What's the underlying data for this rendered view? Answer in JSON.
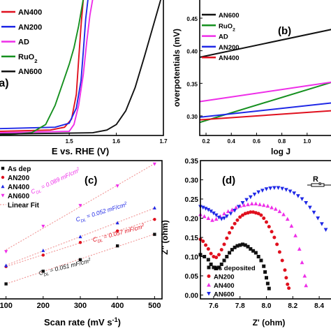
{
  "figure": {
    "panels": [
      "(a)",
      "(b)",
      "(c)",
      "(d)"
    ]
  },
  "chart_data": [
    {
      "id": "a",
      "type": "line",
      "panel_label": "(a)",
      "xlabel": "E vs. RHE (V)",
      "ylabel": "",
      "xlim": [
        1.35,
        1.7
      ],
      "ylim": [
        0,
        100
      ],
      "x_ticks": [
        "1.5",
        "1.6",
        "1.7"
      ],
      "x_tick_values": [
        1.5,
        1.6,
        1.7
      ],
      "grid": false,
      "legend_position": "top-left",
      "series": [
        {
          "name": "AN400",
          "color": "#e0101e",
          "x": [
            1.35,
            1.46,
            1.49,
            1.505,
            1.515,
            1.52,
            1.525,
            1.53
          ],
          "y": [
            3,
            4,
            6,
            12,
            30,
            55,
            80,
            100
          ]
        },
        {
          "name": "AN200",
          "color": "#1f28e6",
          "x": [
            1.35,
            1.47,
            1.5,
            1.515,
            1.525,
            1.53,
            1.535,
            1.54
          ],
          "y": [
            5,
            6,
            9,
            20,
            40,
            62,
            85,
            100
          ]
        },
        {
          "name": "AD",
          "color": "#ee2ee8",
          "x": [
            1.35,
            1.5,
            1.51,
            1.52,
            1.53,
            1.537,
            1.544,
            1.55
          ],
          "y": [
            2,
            3,
            8,
            22,
            45,
            68,
            88,
            100
          ]
        },
        {
          "name": "RuO2",
          "color": "#15901f",
          "x": [
            1.35,
            1.42,
            1.45,
            1.47,
            1.49,
            1.5,
            1.51,
            1.52,
            1.53
          ],
          "y": [
            0,
            2,
            8,
            22,
            42,
            52,
            64,
            80,
            100
          ]
        },
        {
          "name": "AN600",
          "color": "#111111",
          "x": [
            1.35,
            1.55,
            1.58,
            1.6,
            1.62,
            1.64,
            1.66,
            1.68,
            1.695
          ],
          "y": [
            1,
            2,
            4,
            8,
            18,
            35,
            58,
            82,
            100
          ]
        }
      ],
      "legend": [
        {
          "label": "AN400",
          "sub": "",
          "color": "#e0101e"
        },
        {
          "label": "AN200",
          "sub": "",
          "color": "#1f28e6"
        },
        {
          "label": "AD",
          "sub": "",
          "color": "#ee2ee8"
        },
        {
          "label": "RuO",
          "sub": "2",
          "color": "#15901f"
        },
        {
          "label": "AN600",
          "sub": "",
          "color": "#111111"
        }
      ]
    },
    {
      "id": "b",
      "type": "line",
      "panel_label": "(b)",
      "xlabel": "log J",
      "ylabel": "overpotentials (mV)",
      "xlim": [
        0.15,
        1.2
      ],
      "ylim": [
        0.27,
        0.48
      ],
      "y_ticks": [
        "0.30",
        "0.35",
        "0.40",
        "0.45"
      ],
      "y_tick_values": [
        0.3,
        0.35,
        0.4,
        0.45
      ],
      "x_ticks": [
        "0.2",
        "0.4",
        "0.6",
        "0.8",
        "1.0"
      ],
      "x_tick_values": [
        0.2,
        0.4,
        0.6,
        0.8,
        1.0
      ],
      "grid": false,
      "legend_position": "top-left",
      "series": [
        {
          "name": "AN600",
          "color": "#111111",
          "x": [
            0.15,
            1.2
          ],
          "y": [
            0.39,
            0.433
          ]
        },
        {
          "name": "RuO2",
          "color": "#15901f",
          "x": [
            0.15,
            1.2
          ],
          "y": [
            0.29,
            0.352
          ]
        },
        {
          "name": "AD",
          "color": "#ee2ee8",
          "x": [
            0.15,
            1.2
          ],
          "y": [
            0.322,
            0.352
          ]
        },
        {
          "name": "AN200",
          "color": "#1f28e6",
          "x": [
            0.15,
            1.2
          ],
          "y": [
            0.298,
            0.32
          ]
        },
        {
          "name": "AN400",
          "color": "#e0101e",
          "x": [
            0.15,
            1.2
          ],
          "y": [
            0.294,
            0.308
          ]
        }
      ],
      "legend": [
        {
          "label": "AN600",
          "sub": "",
          "color": "#111111"
        },
        {
          "label": "RuO",
          "sub": "2",
          "color": "#15901f"
        },
        {
          "label": "AD",
          "sub": "",
          "color": "#ee2ee8"
        },
        {
          "label": "AN200",
          "sub": "",
          "color": "#1f28e6"
        },
        {
          "label": "AN400",
          "sub": "",
          "color": "#e0101e"
        }
      ]
    },
    {
      "id": "c",
      "type": "scatter",
      "panel_label": "(c)",
      "xlabel": "Scan rate (mV s",
      "xlabel_sup": "-1",
      "xlabel_end": ")",
      "ylabel": "",
      "xlim": [
        80,
        520
      ],
      "ylim": [
        0,
        12
      ],
      "x_ticks": [
        "100",
        "200",
        "300",
        "400",
        "500"
      ],
      "x_tick_values": [
        100,
        200,
        300,
        400,
        500
      ],
      "grid": false,
      "legend_position": "top-left",
      "fit_label": "Linear Fit",
      "series": [
        {
          "name": "As dep",
          "color": "#111111",
          "marker": "square",
          "x": [
            100,
            200,
            300,
            400,
            500
          ],
          "y": [
            1.3,
            2.4,
            3.4,
            4.6,
            5.6
          ]
        },
        {
          "name": "AN200",
          "color": "#e0101e",
          "marker": "circle",
          "x": [
            100,
            200,
            300,
            400,
            500
          ],
          "y": [
            2.8,
            3.8,
            4.9,
            5.9,
            6.9
          ]
        },
        {
          "name": "AN400",
          "color": "#1f28e6",
          "marker": "triangle-up",
          "x": [
            100,
            200,
            300,
            400,
            500
          ],
          "y": [
            2.9,
            4.2,
            5.4,
            6.6,
            7.9
          ]
        },
        {
          "name": "AN600",
          "color": "#ee2ee8",
          "marker": "triangle-down",
          "x": [
            100,
            200,
            300,
            400,
            500
          ],
          "y": [
            4.1,
            6.3,
            8.1,
            9.8,
            11.7
          ]
        }
      ],
      "annotations": [
        {
          "text": "C",
          "sub": "DL",
          "value": " = 0.089 mF/cm",
          "sup": "2",
          "color": "#ee2ee8",
          "x": 170,
          "y": 9.1,
          "angle": -25
        },
        {
          "text": "C",
          "sub": "DL",
          "value": " = 0.052 mF/cm",
          "sup": "2",
          "color": "#1f28e6",
          "x": 290,
          "y": 6.7,
          "angle": -17
        },
        {
          "text": "C",
          "sub": "DL",
          "value": " = 0.057 mF/cm",
          "sup": "2",
          "color": "#e0101e",
          "x": 335,
          "y": 4.95,
          "angle": -15
        },
        {
          "text": "C",
          "sub": "DL",
          "value": " = 0.051 mF/cm",
          "sup": "2",
          "color": "#111111",
          "x": 190,
          "y": 2.05,
          "angle": -14
        }
      ]
    },
    {
      "id": "d",
      "type": "scatter",
      "panel_label": "(d)",
      "xlabel": "Z' (ohm)",
      "ylabel": "Z'' (ohm)",
      "xlim": [
        7.5,
        8.5
      ],
      "ylim": [
        -0.01,
        0.35
      ],
      "y_ticks": [
        "0.00",
        "0.05",
        "0.10",
        "0.15",
        "0.20",
        "0.25",
        "0.30",
        "0.35"
      ],
      "y_tick_values": [
        0.0,
        0.05,
        0.1,
        0.15,
        0.2,
        0.25,
        0.3,
        0.35
      ],
      "x_ticks": [
        "7.6",
        "7.8",
        "8.0",
        "8.2",
        "8.4"
      ],
      "x_tick_values": [
        7.6,
        7.8,
        8.0,
        8.2,
        8.4
      ],
      "grid": false,
      "legend_position": "bottom-left",
      "inset_label": "R",
      "inset_label_sub": "s",
      "series": [
        {
          "name": "As deposited",
          "color": "#111111",
          "marker": "square",
          "x": [
            7.5,
            7.53,
            7.56,
            7.58,
            7.6,
            7.62,
            7.64,
            7.66,
            7.68,
            7.7,
            7.72,
            7.74,
            7.76,
            7.78,
            7.8,
            7.82,
            7.84,
            7.86,
            7.88,
            7.9,
            7.92,
            7.94,
            7.96,
            7.98,
            7.99,
            8.0,
            8.01,
            8.02
          ],
          "y": [
            0.105,
            0.1,
            0.092,
            0.08,
            0.072,
            0.069,
            0.072,
            0.08,
            0.09,
            0.1,
            0.11,
            0.118,
            0.124,
            0.128,
            0.13,
            0.132,
            0.13,
            0.126,
            0.12,
            0.115,
            0.11,
            0.1,
            0.09,
            0.075,
            0.06,
            0.045,
            0.03,
            0.017
          ]
        },
        {
          "name": "AN200",
          "color": "#e0101e",
          "marker": "circle",
          "x": [
            7.5,
            7.52,
            7.54,
            7.56,
            7.58,
            7.6,
            7.62,
            7.64,
            7.66,
            7.68,
            7.7,
            7.72,
            7.74,
            7.76,
            7.78,
            7.8,
            7.82,
            7.84,
            7.86,
            7.88,
            7.9,
            7.92,
            7.94,
            7.96,
            7.98,
            8.0,
            8.02,
            8.04,
            8.06,
            8.08,
            8.1,
            8.12,
            8.14,
            8.15,
            8.16,
            8.17
          ],
          "y": [
            0.145,
            0.14,
            0.13,
            0.12,
            0.108,
            0.1,
            0.098,
            0.105,
            0.118,
            0.132,
            0.148,
            0.162,
            0.175,
            0.186,
            0.195,
            0.203,
            0.208,
            0.212,
            0.214,
            0.216,
            0.216,
            0.214,
            0.212,
            0.208,
            0.2,
            0.19,
            0.178,
            0.165,
            0.15,
            0.132,
            0.112,
            0.09,
            0.065,
            0.045,
            0.028,
            0.018
          ]
        },
        {
          "name": "AN400",
          "color": "#ee2ee8",
          "marker": "triangle-up",
          "x": [
            7.5,
            7.53,
            7.56,
            7.59,
            7.62,
            7.65,
            7.68,
            7.71,
            7.74,
            7.77,
            7.8,
            7.83,
            7.86,
            7.89,
            7.92,
            7.95,
            7.98,
            8.01,
            8.04,
            8.07,
            8.1,
            8.13,
            8.16,
            8.19,
            8.22,
            8.25,
            8.27,
            8.29,
            8.3
          ],
          "y": [
            0.21,
            0.205,
            0.2,
            0.195,
            0.198,
            0.205,
            0.212,
            0.218,
            0.222,
            0.228,
            0.232,
            0.234,
            0.236,
            0.238,
            0.238,
            0.236,
            0.234,
            0.232,
            0.228,
            0.224,
            0.218,
            0.21,
            0.198,
            0.18,
            0.155,
            0.12,
            0.085,
            0.05,
            0.025
          ]
        },
        {
          "name": "AN600",
          "color": "#1f28e6",
          "marker": "triangle-down",
          "x": [
            7.5,
            7.52,
            7.54,
            7.56,
            7.58,
            7.6,
            7.62,
            7.64,
            7.66,
            7.68,
            7.7,
            7.73,
            7.76,
            7.79,
            7.82,
            7.85,
            7.88,
            7.91,
            7.94,
            7.97,
            8.0,
            8.03,
            8.06,
            8.09,
            8.12,
            8.15,
            8.18,
            8.21,
            8.24,
            8.27,
            8.3,
            8.33,
            8.36,
            8.39,
            8.42,
            8.45
          ],
          "y": [
            0.23,
            0.228,
            0.225,
            0.222,
            0.218,
            0.213,
            0.208,
            0.202,
            0.198,
            0.2,
            0.205,
            0.212,
            0.22,
            0.23,
            0.24,
            0.248,
            0.255,
            0.262,
            0.268,
            0.272,
            0.276,
            0.278,
            0.279,
            0.279,
            0.277,
            0.274,
            0.27,
            0.265,
            0.258,
            0.25,
            0.24,
            0.228,
            0.215,
            0.2,
            0.185,
            0.17
          ]
        }
      ]
    }
  ]
}
